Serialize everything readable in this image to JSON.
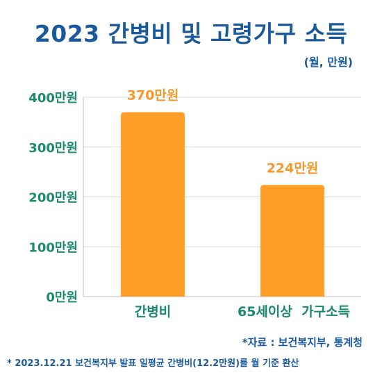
{
  "title": "2023 간병비 및 고령가구 소득",
  "unit": "(월, 만원)",
  "source": "*자료 : 보건복지부, 통계청",
  "footnote": "* 2023.12.21 보건복지부 발표 일평균 간병비(12.2만원)를 월 기준 환산",
  "colors": {
    "title": "#1a5a9c",
    "axis_labels": "#1b8a6b",
    "bar": "#ff9f2a",
    "data_label": "#f39a2b",
    "grid": "#d9d9d9"
  },
  "chart_data": {
    "type": "bar",
    "categories": [
      "간병비",
      "65세이상  가구소득"
    ],
    "values": [
      370,
      224
    ],
    "data_labels": [
      "370만원",
      "224만원"
    ],
    "yticks": [
      0,
      100,
      200,
      300,
      400
    ],
    "ytick_labels": [
      "0만원",
      "100만원",
      "200만원",
      "300만원",
      "400만원"
    ],
    "ylim": [
      0,
      400
    ],
    "grid": true,
    "legend": "none"
  }
}
